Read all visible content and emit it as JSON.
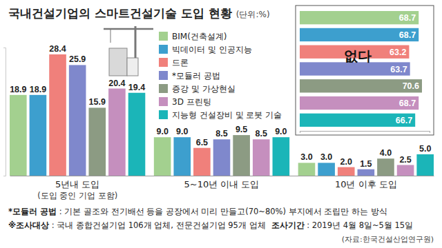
{
  "chart_data": [
    {
      "type": "bar",
      "title": "국내건설기업의 스마트건설기술 도입 현황",
      "subtitle": "(단위:%)",
      "categories": [
        "5년내 도입",
        "5~10년 이내 도입",
        "10년 이후 도입"
      ],
      "series": [
        {
          "name": "BIM(건축설계)",
          "color": "#a3d08f",
          "values": [
            18.9,
            9.0,
            3.0
          ],
          "value_labels": [
            "18.9",
            "9.0",
            "3.0"
          ]
        },
        {
          "name": "빅데이터 및 인공지능",
          "color": "#3d9fce",
          "values": [
            18.9,
            9.0,
            3.0
          ],
          "value_labels": [
            "18.9",
            "9.0",
            "3.0"
          ]
        },
        {
          "name": "드론",
          "color": "#f0807b",
          "values": [
            28.4,
            6.5,
            2.0
          ],
          "value_labels": [
            "28.4",
            "6.5",
            "2.0"
          ]
        },
        {
          "name": "*모듈러 공법",
          "color": "#7f88cc",
          "values": [
            25.9,
            8.5,
            1.5
          ],
          "value_labels": [
            "25.9",
            "8.5",
            "1.5"
          ]
        },
        {
          "name": "증강 및 가상현실",
          "color": "#8c9b83",
          "values": [
            15.9,
            9.5,
            4.0
          ],
          "value_labels": [
            "15.9",
            "9.5",
            "4.0"
          ]
        },
        {
          "name": "3D 프린팅",
          "color": "#c58fbe",
          "values": [
            20.4,
            8.5,
            2.5
          ],
          "value_labels": [
            "20.4",
            "8.5",
            "2.5"
          ]
        },
        {
          "name": "지능형 건설장비 및 로봇 기술",
          "color": "#1bb5b8",
          "values": [
            19.4,
            9.0,
            5.0
          ],
          "value_labels": [
            "19.4",
            "9.0",
            "5.0"
          ]
        }
      ],
      "ylim": [
        0,
        30
      ],
      "yticks": [
        0,
        30
      ],
      "tick_labels": "x",
      "data_labels": true,
      "legend": "top",
      "annotations": [
        "(도입 중인 기업 포함)",
        "*모듈러 공법",
        " : 기본 골조와 전기배선 등을 공장에서 미리 만들고(70~80%) 부지에서 조립만 하는 방식",
        "※조사대상",
        " : 국내 종합건설기업 106개 업체, 전문건설기업 95개 업체",
        "조사기간",
        " : 2019년 4월 8일~5월 15일",
        "(자료:한국건설산업연구원)"
      ]
    },
    {
      "type": "bar",
      "orientation": "horizontal",
      "title": "없다",
      "categories": [
        null,
        null,
        null,
        null,
        null,
        null,
        null
      ],
      "values": [
        68.7,
        68.7,
        63.2,
        63.7,
        70.6,
        68.7,
        66.7
      ],
      "colors": [
        "#a3d08f",
        "#3d9fce",
        "#f0807b",
        "#7f88cc",
        "#8c9b83",
        "#c58fbe",
        "#1bb5b8"
      ],
      "xlim": [
        0,
        75
      ],
      "xticks": [
        0,
        75
      ],
      "tick_labels": false,
      "data_labels": true
    }
  ]
}
